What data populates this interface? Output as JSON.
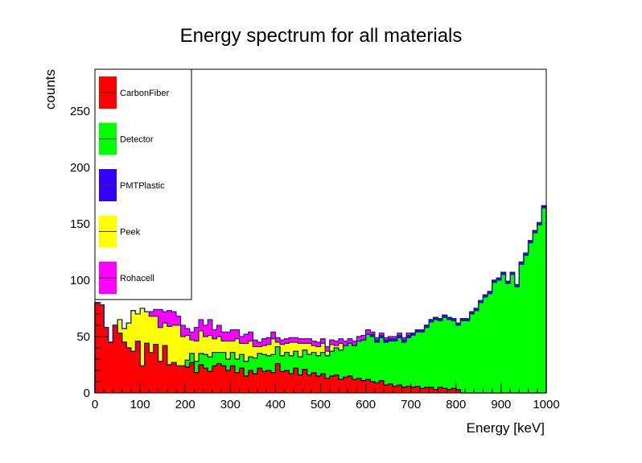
{
  "chart_data": {
    "type": "area",
    "style": "stacked-step-histogram",
    "title": "Energy spectrum for all materials",
    "xlabel": "Energy [keV]",
    "ylabel": "counts",
    "xlim": [
      0,
      1000
    ],
    "ylim": [
      0,
      287
    ],
    "x_ticks": [
      0,
      100,
      200,
      300,
      400,
      500,
      600,
      700,
      800,
      900,
      1000
    ],
    "y_ticks": [
      0,
      50,
      100,
      150,
      200,
      250
    ],
    "grid": false,
    "legend_position": "top-left",
    "bin_width": 10,
    "x": [
      0,
      10,
      20,
      30,
      40,
      50,
      60,
      70,
      80,
      90,
      100,
      110,
      120,
      130,
      140,
      150,
      160,
      170,
      180,
      190,
      200,
      210,
      220,
      230,
      240,
      250,
      260,
      270,
      280,
      290,
      300,
      310,
      320,
      330,
      340,
      350,
      360,
      370,
      380,
      390,
      400,
      410,
      420,
      430,
      440,
      450,
      460,
      470,
      480,
      490,
      500,
      510,
      520,
      530,
      540,
      550,
      560,
      570,
      580,
      590,
      600,
      610,
      620,
      630,
      640,
      650,
      660,
      670,
      680,
      690,
      700,
      710,
      720,
      730,
      740,
      750,
      760,
      770,
      780,
      790,
      800,
      810,
      820,
      830,
      840,
      850,
      860,
      870,
      880,
      890,
      900,
      910,
      920,
      930,
      940,
      950,
      960,
      970,
      980,
      990
    ],
    "series": [
      {
        "name": "CarbonFiber",
        "color": "#ff0000",
        "values": [
          80,
          78,
          58,
          45,
          60,
          53,
          45,
          40,
          37,
          46,
          24,
          44,
          36,
          43,
          28,
          42,
          25,
          27,
          24,
          24,
          23,
          27,
          18,
          25,
          22,
          19,
          24,
          26,
          24,
          20,
          24,
          18,
          22,
          15,
          20,
          17,
          22,
          19,
          20,
          18,
          26,
          19,
          20,
          17,
          22,
          16,
          21,
          16,
          18,
          15,
          17,
          13,
          15,
          16,
          12,
          14,
          15,
          12,
          13,
          11,
          12,
          10,
          9,
          11,
          7,
          8,
          6,
          7,
          5,
          6,
          5,
          6,
          4,
          5,
          5,
          3,
          5,
          4,
          3,
          4,
          3,
          0,
          0,
          0,
          0,
          0,
          0,
          0,
          0,
          0,
          0,
          0,
          0,
          0,
          0,
          0,
          0,
          0,
          0,
          0
        ]
      },
      {
        "name": "Detector",
        "color": "#00ff00",
        "values": [
          0,
          0,
          0,
          0,
          0,
          0,
          0,
          0,
          0,
          0,
          0,
          0,
          0,
          0,
          0,
          0,
          0,
          0,
          0,
          0,
          6,
          8,
          10,
          10,
          12,
          13,
          12,
          10,
          12,
          10,
          12,
          12,
          12,
          13,
          12,
          14,
          13,
          15,
          13,
          16,
          15,
          14,
          16,
          16,
          15,
          16,
          17,
          18,
          18,
          18,
          19,
          20,
          22,
          24,
          26,
          28,
          29,
          30,
          33,
          36,
          40,
          40,
          36,
          38,
          38,
          38,
          40,
          42,
          40,
          43,
          46,
          48,
          50,
          53,
          58,
          62,
          59,
          63,
          62,
          60,
          57,
          64,
          64,
          70,
          73,
          80,
          85,
          88,
          98,
          100,
          105,
          97,
          105,
          94,
          114,
          122,
          133,
          142,
          149,
          164
        ]
      },
      {
        "name": "PMTPlastic",
        "color": "#3300ff",
        "values": [
          0,
          0,
          0,
          0,
          0,
          0,
          0,
          0,
          0,
          0,
          0,
          0,
          0,
          0,
          0,
          0,
          0,
          0,
          0,
          0,
          0,
          0,
          0,
          0,
          0,
          0,
          0,
          0,
          0,
          0,
          0,
          0,
          0,
          0,
          0,
          0,
          0,
          0,
          0,
          0,
          0,
          0,
          0,
          0,
          0,
          0,
          0,
          0,
          0,
          0,
          0,
          0,
          0,
          0,
          0,
          0,
          0,
          0,
          0,
          0,
          0,
          2,
          2,
          2,
          2,
          2,
          2,
          2,
          2,
          2,
          2,
          2,
          2,
          2,
          2,
          2,
          2,
          2,
          2,
          2,
          2,
          2,
          2,
          2,
          2,
          2,
          2,
          2,
          2,
          2,
          2,
          2,
          2,
          2,
          2,
          2,
          2,
          2,
          2,
          2
        ]
      },
      {
        "name": "Peek",
        "color": "#ffff00",
        "values": [
          0,
          0,
          0,
          0,
          0,
          12,
          12,
          22,
          36,
          24,
          51,
          28,
          32,
          25,
          30,
          20,
          34,
          33,
          36,
          26,
          22,
          12,
          18,
          20,
          16,
          19,
          12,
          14,
          10,
          16,
          10,
          18,
          10,
          16,
          14,
          10,
          6,
          8,
          10,
          14,
          4,
          10,
          8,
          12,
          8,
          12,
          6,
          10,
          6,
          8,
          8,
          4,
          6,
          2,
          6,
          0,
          0,
          0,
          0,
          0,
          0,
          0,
          0,
          0,
          0,
          0,
          0,
          0,
          0,
          0,
          0,
          0,
          0,
          0,
          0,
          0,
          0,
          0,
          0,
          0,
          0,
          0,
          0,
          0,
          0,
          0,
          0,
          0,
          0,
          0,
          0,
          0,
          0,
          0,
          0,
          0,
          0,
          0,
          0,
          0
        ]
      },
      {
        "name": "Rohacell",
        "color": "#ff00ff",
        "values": [
          0,
          0,
          0,
          0,
          0,
          0,
          0,
          0,
          0,
          0,
          0,
          0,
          4,
          6,
          16,
          10,
          14,
          12,
          8,
          10,
          6,
          7,
          12,
          10,
          10,
          14,
          8,
          10,
          8,
          8,
          10,
          8,
          6,
          8,
          8,
          6,
          4,
          6,
          6,
          6,
          4,
          4,
          4,
          4,
          4,
          4,
          4,
          4,
          4,
          4,
          4,
          4,
          4,
          4,
          4,
          4,
          4,
          4,
          4,
          4,
          4,
          2,
          2,
          2,
          2,
          2,
          2,
          2,
          2,
          2,
          0,
          0,
          0,
          0,
          0,
          0,
          0,
          0,
          0,
          0,
          0,
          0,
          0,
          0,
          0,
          0,
          0,
          0,
          0,
          0,
          0,
          0,
          0,
          0,
          0,
          0,
          0,
          0,
          0,
          0
        ]
      }
    ]
  }
}
